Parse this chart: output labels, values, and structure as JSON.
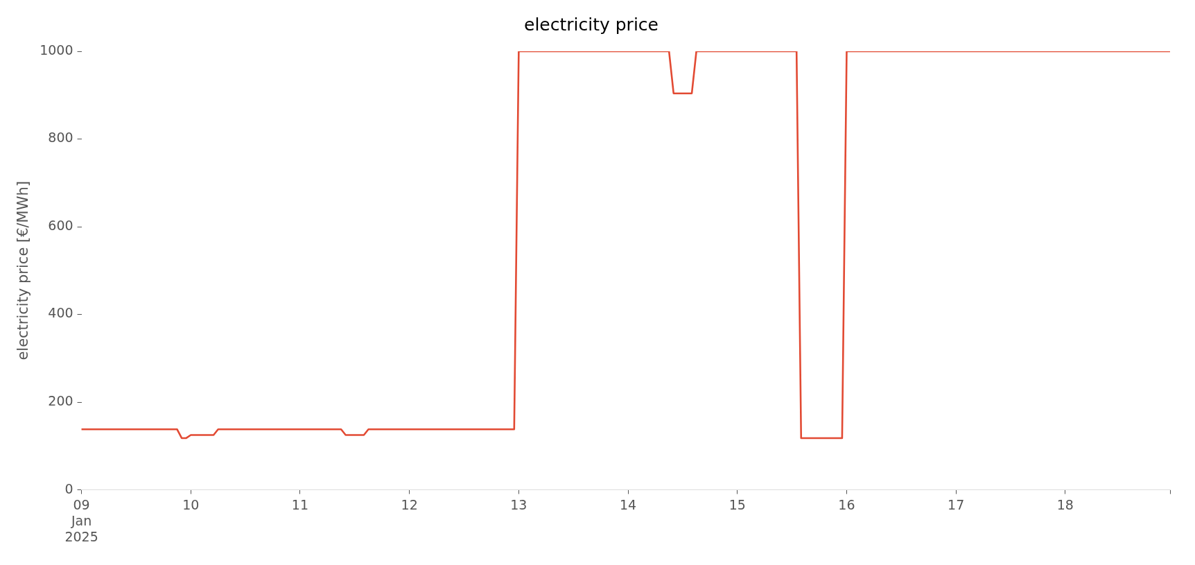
{
  "chart_data": {
    "type": "line",
    "title": "electricity price",
    "ylabel": "electricity price [€/MWh]",
    "x": [
      "2025-01-09T00:00",
      "2025-01-09T21:00",
      "2025-01-09T22:00",
      "2025-01-09T23:00",
      "2025-01-10T00:00",
      "2025-01-10T05:00",
      "2025-01-10T06:00",
      "2025-01-11T09:00",
      "2025-01-11T10:00",
      "2025-01-11T14:00",
      "2025-01-11T15:00",
      "2025-01-12T23:00",
      "2025-01-13T00:00",
      "2025-01-14T09:00",
      "2025-01-14T10:00",
      "2025-01-14T14:00",
      "2025-01-14T15:00",
      "2025-01-15T13:00",
      "2025-01-15T14:00",
      "2025-01-15T23:00",
      "2025-01-16T00:00",
      "2025-01-18T23:00"
    ],
    "series": [
      {
        "color": "#e24a33",
        "values": [
          138,
          138,
          118,
          118,
          125,
          125,
          138,
          138,
          125,
          125,
          138,
          138,
          1000,
          1000,
          904,
          904,
          1000,
          1000,
          118,
          118,
          1000,
          1000
        ]
      }
    ],
    "xticks": [
      {
        "value": "2025-01-09",
        "label": "09\nJan\n2025"
      },
      {
        "value": "2025-01-10",
        "label": "10"
      },
      {
        "value": "2025-01-11",
        "label": "11"
      },
      {
        "value": "2025-01-12",
        "label": "12"
      },
      {
        "value": "2025-01-13",
        "label": "13"
      },
      {
        "value": "2025-01-14",
        "label": "14"
      },
      {
        "value": "2025-01-15",
        "label": "15"
      },
      {
        "value": "2025-01-16",
        "label": "16"
      },
      {
        "value": "2025-01-17",
        "label": "17"
      },
      {
        "value": "2025-01-18",
        "label": "18"
      },
      {
        "value": "2025-01-18T23:00",
        "label": null
      }
    ],
    "xlim": [
      "2025-01-09T00:00",
      "2025-01-18T23:00"
    ],
    "ylim": [
      0,
      1000
    ],
    "yticks": [
      0,
      200,
      400,
      600,
      800,
      1000
    ],
    "grid": false,
    "legend": false,
    "marker": "none",
    "line_style": "solid"
  }
}
